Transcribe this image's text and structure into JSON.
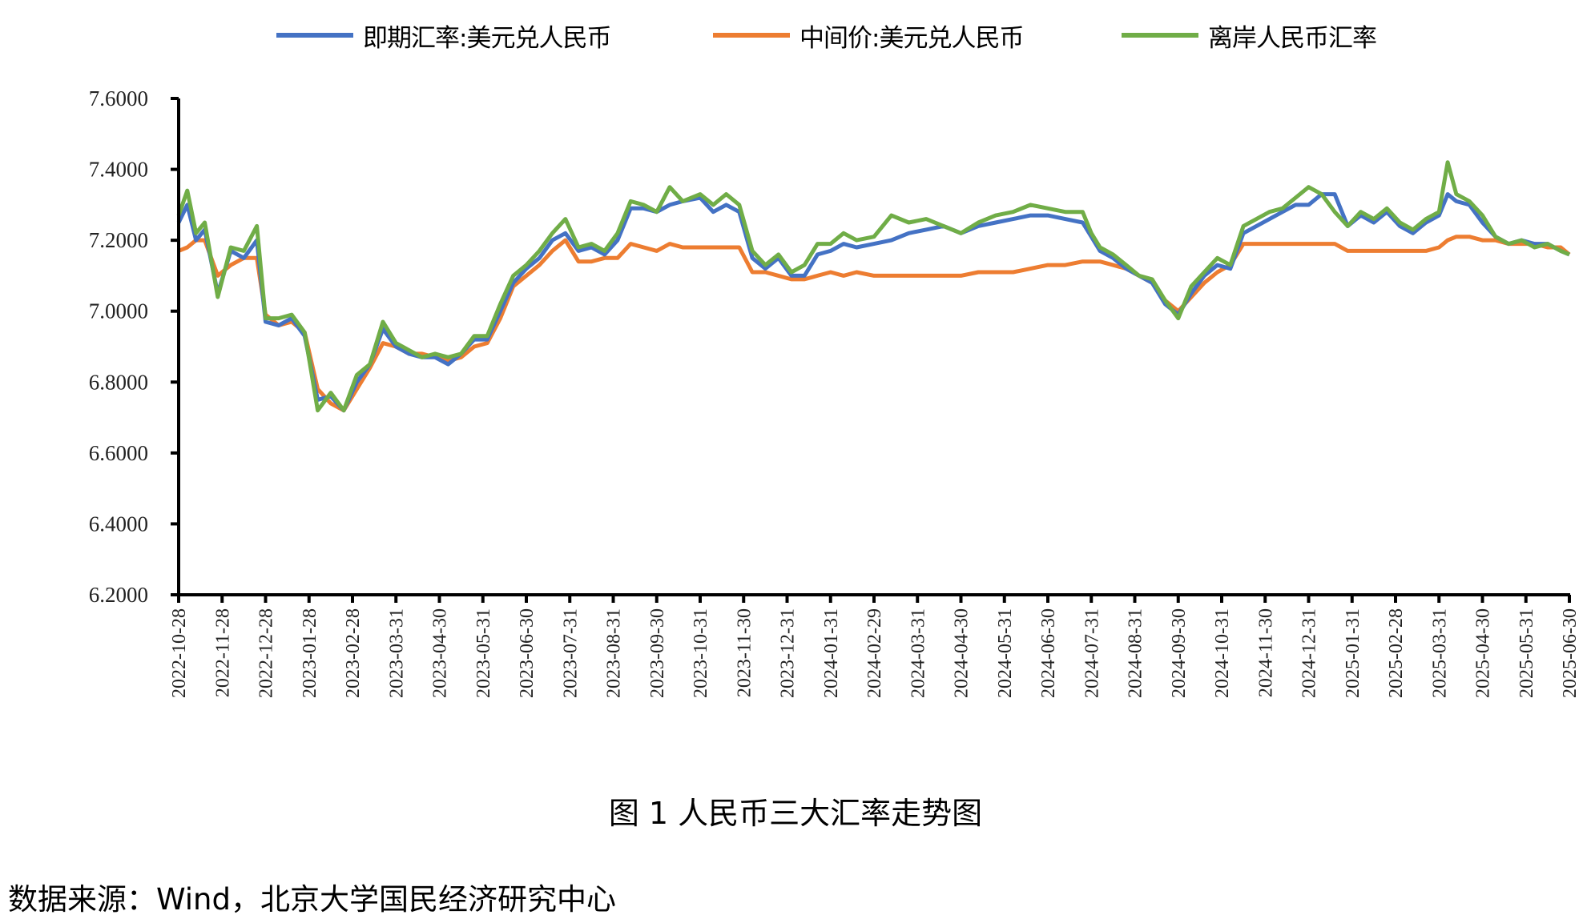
{
  "legend": {
    "items": [
      {
        "label": "即期汇率:美元兑人民币",
        "color": "#4472C4"
      },
      {
        "label": "中间价:美元兑人民币",
        "color": "#ED7D31"
      },
      {
        "label": "离岸人民币汇率",
        "color": "#70AD47"
      }
    ]
  },
  "caption": "图 1 人民币三大汇率走势图",
  "source": "数据来源：Wind，北京大学国民经济研究中心",
  "chart_data": {
    "type": "line",
    "title": "图 1 人民币三大汇率走势图",
    "xlabel": "",
    "ylabel": "",
    "ylim": [
      6.2,
      7.6
    ],
    "yticks": [
      "7.6000",
      "7.4000",
      "7.2000",
      "7.0000",
      "6.8000",
      "6.6000",
      "6.4000",
      "6.2000"
    ],
    "grid": false,
    "legend_position": "top",
    "x_tick_labels": [
      "2022-10-28",
      "2022-11-28",
      "2022-12-28",
      "2023-01-28",
      "2023-02-28",
      "2023-03-31",
      "2023-04-30",
      "2023-05-31",
      "2023-06-30",
      "2023-07-31",
      "2023-08-31",
      "2023-09-30",
      "2023-10-31",
      "2023-11-30",
      "2023-12-31",
      "2024-01-31",
      "2024-02-29",
      "2024-03-31",
      "2024-04-30",
      "2024-05-31",
      "2024-06-30",
      "2024-07-31",
      "2024-08-31",
      "2024-09-30",
      "2024-10-31",
      "2024-11-30",
      "2024-12-31",
      "2025-01-31",
      "2025-02-28",
      "2025-03-31",
      "2025-04-30",
      "2025-05-31",
      "2025-06-30"
    ],
    "x": [
      0,
      0.2,
      0.4,
      0.6,
      0.9,
      1.2,
      1.5,
      1.8,
      2.0,
      2.3,
      2.6,
      2.9,
      3.2,
      3.5,
      3.8,
      4.1,
      4.4,
      4.7,
      5.0,
      5.3,
      5.6,
      5.9,
      6.2,
      6.5,
      6.8,
      7.1,
      7.4,
      7.7,
      8.0,
      8.3,
      8.6,
      8.9,
      9.2,
      9.5,
      9.8,
      10.1,
      10.4,
      10.7,
      11.0,
      11.3,
      11.6,
      12.0,
      12.3,
      12.6,
      12.9,
      13.2,
      13.5,
      13.8,
      14.1,
      14.4,
      14.7,
      15.0,
      15.3,
      15.6,
      16.0,
      16.4,
      16.8,
      17.2,
      17.6,
      18.0,
      18.4,
      18.8,
      19.2,
      19.6,
      20.0,
      20.4,
      20.8,
      21.0,
      21.2,
      21.5,
      21.8,
      22.1,
      22.4,
      22.7,
      23.0,
      23.3,
      23.6,
      23.9,
      24.2,
      24.5,
      24.8,
      25.1,
      25.4,
      25.7,
      26.0,
      26.3,
      26.6,
      26.9,
      27.2,
      27.5,
      27.8,
      28.1,
      28.4,
      28.7,
      29.0,
      29.2,
      29.4,
      29.7,
      30.0,
      30.3,
      30.6,
      30.9,
      31.2,
      31.5,
      31.8,
      32.0
    ],
    "series": [
      {
        "name": "即期汇率:美元兑人民币",
        "color": "#4472C4",
        "values": [
          7.25,
          7.3,
          7.2,
          7.23,
          7.05,
          7.17,
          7.15,
          7.2,
          6.97,
          6.96,
          6.98,
          6.93,
          6.75,
          6.76,
          6.72,
          6.8,
          6.85,
          6.95,
          6.9,
          6.88,
          6.87,
          6.87,
          6.85,
          6.88,
          6.92,
          6.92,
          7.0,
          7.08,
          7.12,
          7.15,
          7.2,
          7.22,
          7.17,
          7.18,
          7.16,
          7.2,
          7.29,
          7.29,
          7.28,
          7.3,
          7.31,
          7.32,
          7.28,
          7.3,
          7.28,
          7.15,
          7.12,
          7.15,
          7.1,
          7.1,
          7.16,
          7.17,
          7.19,
          7.18,
          7.19,
          7.2,
          7.22,
          7.23,
          7.24,
          7.22,
          7.24,
          7.25,
          7.26,
          7.27,
          7.27,
          7.26,
          7.25,
          7.21,
          7.17,
          7.15,
          7.12,
          7.1,
          7.08,
          7.02,
          6.99,
          7.05,
          7.1,
          7.13,
          7.12,
          7.22,
          7.24,
          7.26,
          7.28,
          7.3,
          7.3,
          7.33,
          7.33,
          7.24,
          7.27,
          7.25,
          7.28,
          7.24,
          7.22,
          7.25,
          7.27,
          7.33,
          7.31,
          7.3,
          7.25,
          7.21,
          7.19,
          7.2,
          7.19,
          7.19,
          7.17,
          7.16
        ]
      },
      {
        "name": "中间价:美元兑人民币",
        "color": "#ED7D31",
        "values": [
          7.17,
          7.18,
          7.2,
          7.2,
          7.1,
          7.13,
          7.15,
          7.15,
          6.99,
          6.96,
          6.97,
          6.94,
          6.78,
          6.74,
          6.72,
          6.78,
          6.84,
          6.91,
          6.9,
          6.88,
          6.88,
          6.87,
          6.86,
          6.87,
          6.9,
          6.91,
          6.98,
          7.07,
          7.1,
          7.13,
          7.17,
          7.2,
          7.14,
          7.14,
          7.15,
          7.15,
          7.19,
          7.18,
          7.17,
          7.19,
          7.18,
          7.18,
          7.18,
          7.18,
          7.18,
          7.11,
          7.11,
          7.1,
          7.09,
          7.09,
          7.1,
          7.11,
          7.1,
          7.11,
          7.1,
          7.1,
          7.1,
          7.1,
          7.1,
          7.1,
          7.11,
          7.11,
          7.11,
          7.12,
          7.13,
          7.13,
          7.14,
          7.14,
          7.14,
          7.13,
          7.12,
          7.1,
          7.08,
          7.03,
          7.0,
          7.04,
          7.08,
          7.11,
          7.13,
          7.19,
          7.19,
          7.19,
          7.19,
          7.19,
          7.19,
          7.19,
          7.19,
          7.17,
          7.17,
          7.17,
          7.17,
          7.17,
          7.17,
          7.17,
          7.18,
          7.2,
          7.21,
          7.21,
          7.2,
          7.2,
          7.19,
          7.19,
          7.19,
          7.18,
          7.18,
          7.16
        ]
      },
      {
        "name": "离岸人民币汇率",
        "color": "#70AD47",
        "values": [
          7.27,
          7.34,
          7.22,
          7.25,
          7.04,
          7.18,
          7.17,
          7.24,
          6.98,
          6.98,
          6.99,
          6.94,
          6.72,
          6.77,
          6.72,
          6.82,
          6.85,
          6.97,
          6.91,
          6.89,
          6.87,
          6.88,
          6.87,
          6.88,
          6.93,
          6.93,
          7.02,
          7.1,
          7.13,
          7.17,
          7.22,
          7.26,
          7.18,
          7.19,
          7.17,
          7.22,
          7.31,
          7.3,
          7.28,
          7.35,
          7.31,
          7.33,
          7.3,
          7.33,
          7.3,
          7.17,
          7.13,
          7.16,
          7.11,
          7.13,
          7.19,
          7.19,
          7.22,
          7.2,
          7.21,
          7.27,
          7.25,
          7.26,
          7.24,
          7.22,
          7.25,
          7.27,
          7.28,
          7.3,
          7.29,
          7.28,
          7.28,
          7.22,
          7.18,
          7.16,
          7.13,
          7.1,
          7.09,
          7.03,
          6.98,
          7.07,
          7.11,
          7.15,
          7.13,
          7.24,
          7.26,
          7.28,
          7.29,
          7.32,
          7.35,
          7.33,
          7.28,
          7.24,
          7.28,
          7.26,
          7.29,
          7.25,
          7.23,
          7.26,
          7.28,
          7.42,
          7.33,
          7.31,
          7.27,
          7.21,
          7.19,
          7.2,
          7.18,
          7.19,
          7.17,
          7.16
        ]
      }
    ]
  }
}
